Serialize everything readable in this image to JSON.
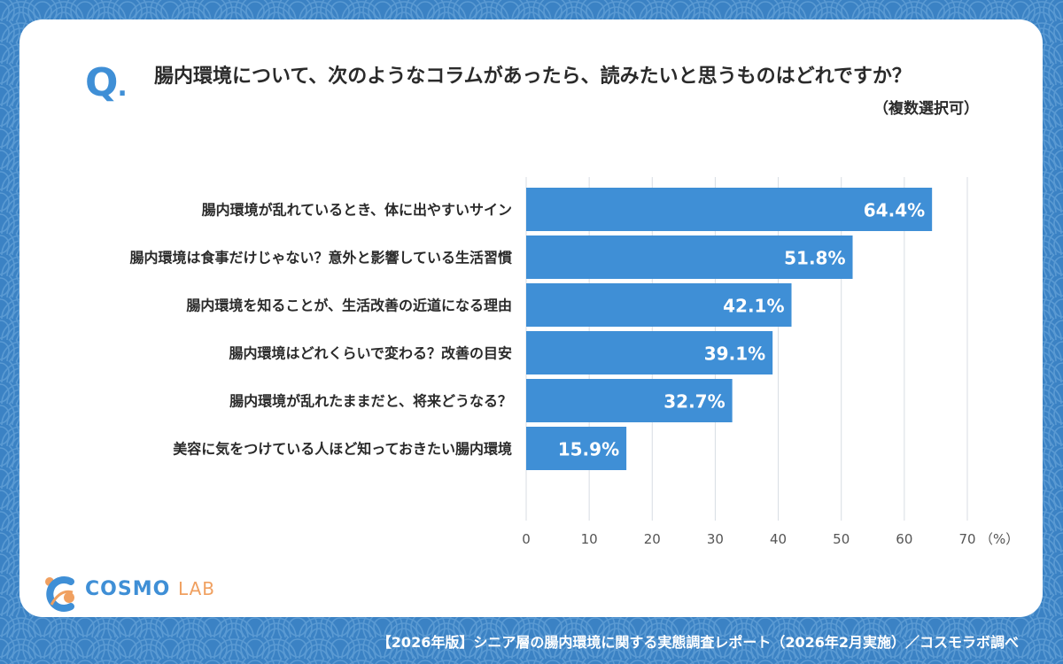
{
  "question": {
    "mark": "Q",
    "text": "腸内環境について、次のようなコラムがあったら、読みたいと思うものはどれですか？",
    "note": "（複数選択可）"
  },
  "chart_data": {
    "type": "bar",
    "orientation": "horizontal",
    "categories": [
      "腸内環境が乱れているとき、体に出やすいサイン",
      "腸内環境は食事だけじゃない？意外と影響している生活習慣",
      "腸内環境を知ることが、生活改善の近道になる理由",
      "腸内環境はどれくらいで変わる？改善の目安",
      "腸内環境が乱れたままだと、将来どうなる？",
      "美容に気をつけている人ほど知っておきたい腸内環境"
    ],
    "values": [
      64.4,
      51.8,
      42.1,
      39.1,
      32.7,
      15.9
    ],
    "value_labels": [
      "64.4%",
      "51.8%",
      "42.1%",
      "39.1%",
      "32.7%",
      "15.9%"
    ],
    "xlim": [
      0,
      70
    ],
    "xticks": [
      "0",
      "10",
      "20",
      "30",
      "40",
      "50",
      "60",
      "70"
    ],
    "xunit": "（%）",
    "grid": true,
    "bar_color": "#3f8fd6"
  },
  "brand": {
    "name_main": "COSMO",
    "name_sub": "LAB"
  },
  "footer": "【2026年版】シニア層の腸内環境に関する実態調査レポート（2026年2月実施）／コスモラボ調べ"
}
